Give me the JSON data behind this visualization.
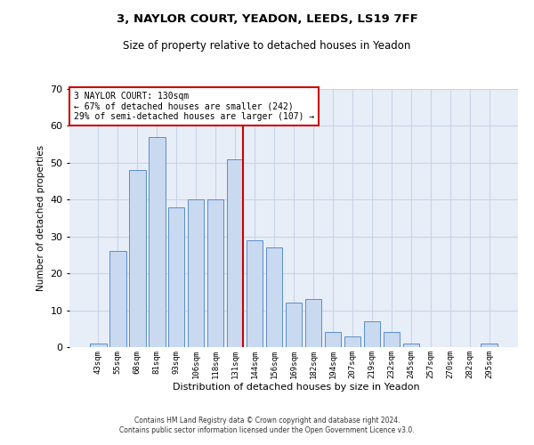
{
  "title1": "3, NAYLOR COURT, YEADON, LEEDS, LS19 7FF",
  "title2": "Size of property relative to detached houses in Yeadon",
  "xlabel": "Distribution of detached houses by size in Yeadon",
  "ylabel": "Number of detached properties",
  "categories": [
    "43sqm",
    "55sqm",
    "68sqm",
    "81sqm",
    "93sqm",
    "106sqm",
    "118sqm",
    "131sqm",
    "144sqm",
    "156sqm",
    "169sqm",
    "182sqm",
    "194sqm",
    "207sqm",
    "219sqm",
    "232sqm",
    "245sqm",
    "257sqm",
    "270sqm",
    "282sqm",
    "295sqm"
  ],
  "values": [
    1,
    26,
    48,
    57,
    38,
    40,
    40,
    51,
    29,
    27,
    12,
    13,
    4,
    3,
    7,
    4,
    1,
    0,
    0,
    0,
    1
  ],
  "bar_color": "#c9d9f0",
  "bar_edge_color": "#5b8dc8",
  "vline_x_index": 7,
  "vline_color": "#cc0000",
  "annotation_text": "3 NAYLOR COURT: 130sqm\n← 67% of detached houses are smaller (242)\n29% of semi-detached houses are larger (107) →",
  "annotation_box_edge": "#cc0000",
  "ylim": [
    0,
    70
  ],
  "yticks": [
    0,
    10,
    20,
    30,
    40,
    50,
    60,
    70
  ],
  "grid_color": "#c8d4e8",
  "background_color": "#e8eef8",
  "footer1": "Contains HM Land Registry data © Crown copyright and database right 2024.",
  "footer2": "Contains public sector information licensed under the Open Government Licence v3.0."
}
